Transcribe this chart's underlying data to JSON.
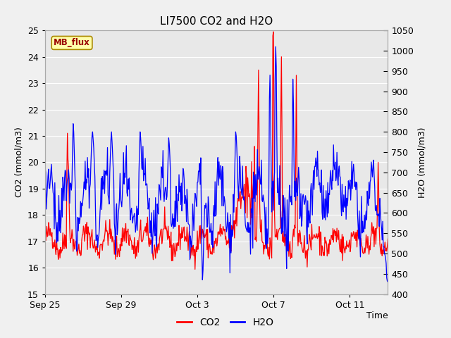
{
  "title": "LI7500 CO2 and H2O",
  "xlabel": "Time",
  "ylabel_left": "CO2 (mmol/m3)",
  "ylabel_right": "H2O (mmol/m3)",
  "ylim_left": [
    15.0,
    25.0
  ],
  "ylim_right": [
    400,
    1050
  ],
  "yticks_left": [
    15.0,
    16.0,
    17.0,
    18.0,
    19.0,
    20.0,
    21.0,
    22.0,
    23.0,
    24.0,
    25.0
  ],
  "yticks_right": [
    400,
    450,
    500,
    550,
    600,
    650,
    700,
    750,
    800,
    850,
    900,
    950,
    1000,
    1050
  ],
  "xtick_labels": [
    "Sep 25",
    "Sep 29",
    "Oct 3",
    "Oct 7",
    "Oct 11"
  ],
  "xtick_positions": [
    0,
    4,
    8,
    12,
    16
  ],
  "xlim": [
    0,
    18
  ],
  "watermark_text": "MB_flux",
  "watermark_bg": "#FFFFAA",
  "watermark_border": "#AA8800",
  "watermark_text_color": "#990000",
  "co2_color": "#FF0000",
  "h2o_color": "#0000FF",
  "fig_bg_color": "#F0F0F0",
  "plot_bg_color": "#E8E8E8",
  "grid_color": "#FFFFFF",
  "title_fontsize": 11,
  "axis_label_fontsize": 9,
  "tick_fontsize": 9,
  "legend_fontsize": 10,
  "linewidth": 0.9
}
